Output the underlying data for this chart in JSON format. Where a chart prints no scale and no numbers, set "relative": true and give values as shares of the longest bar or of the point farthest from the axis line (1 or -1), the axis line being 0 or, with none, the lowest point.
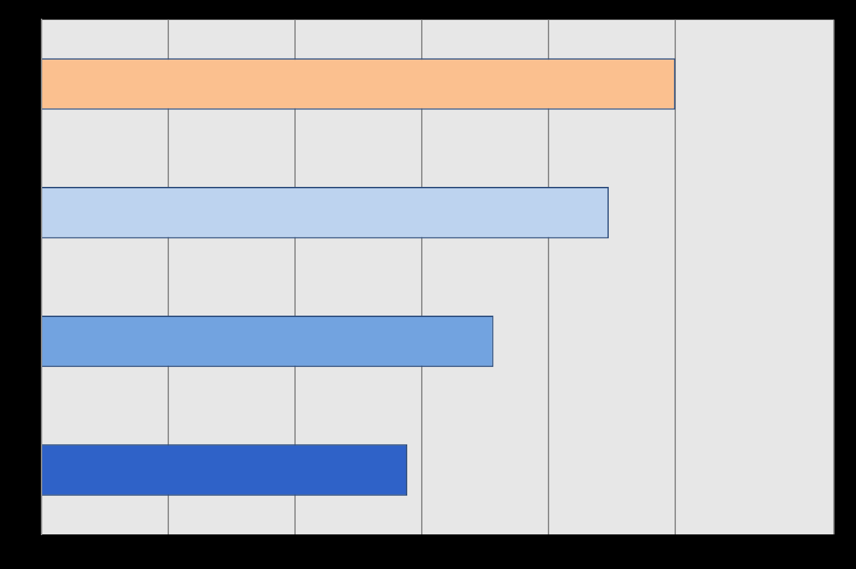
{
  "chart_data": {
    "type": "bar",
    "orientation": "horizontal",
    "relative": true,
    "categories": [
      null,
      null,
      null,
      null
    ],
    "values": [
      1,
      0.895,
      0.713,
      0.577
    ],
    "colors": [
      "#fbc08f",
      "#bdd3ef",
      "#72a3e0",
      "#2f62c8"
    ],
    "grid": "x",
    "legend": false
  }
}
